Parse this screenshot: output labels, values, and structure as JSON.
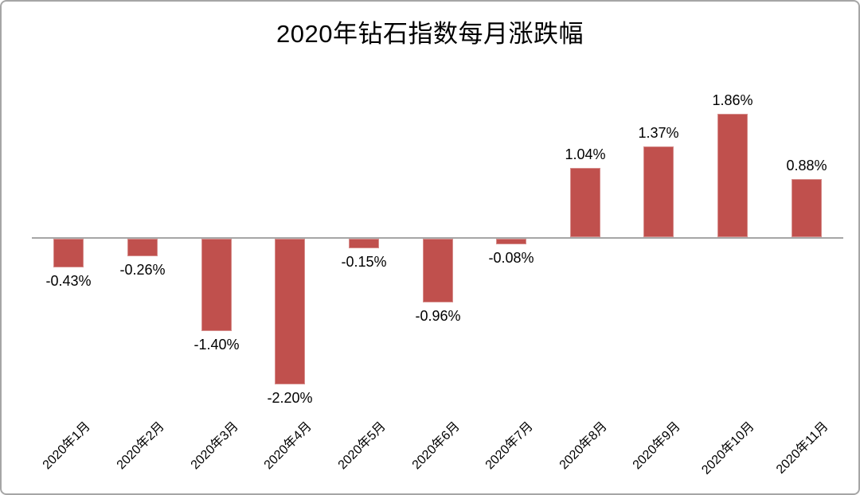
{
  "frame": {
    "background_color": "#ffffff",
    "border_color": "#a6a6a6"
  },
  "chart_data": {
    "type": "bar",
    "title": "2020年钻石指数每月涨跌幅",
    "categories": [
      "2020年1月",
      "2020年2月",
      "2020年3月",
      "2020年4月",
      "2020年5月",
      "2020年6月",
      "2020年7月",
      "2020年8月",
      "2020年9月",
      "2020年10月",
      "2020年11月"
    ],
    "values": [
      -0.43,
      -0.26,
      -1.4,
      -2.2,
      -0.15,
      -0.96,
      -0.08,
      1.04,
      1.37,
      1.86,
      0.88
    ],
    "value_labels": [
      "-0.43%",
      "-0.26%",
      "-1.40%",
      "-2.20%",
      "-0.15%",
      "-0.96%",
      "-0.08%",
      "1.04%",
      "1.37%",
      "1.86%",
      "0.88%"
    ],
    "xlabel": "",
    "ylabel": "",
    "ylim": [
      -2.4,
      2.1
    ],
    "grid": false,
    "legend": false,
    "bar_color": "#c0504d",
    "axis_line_color": "#a6a6a6",
    "label_text_color": "#000000"
  }
}
